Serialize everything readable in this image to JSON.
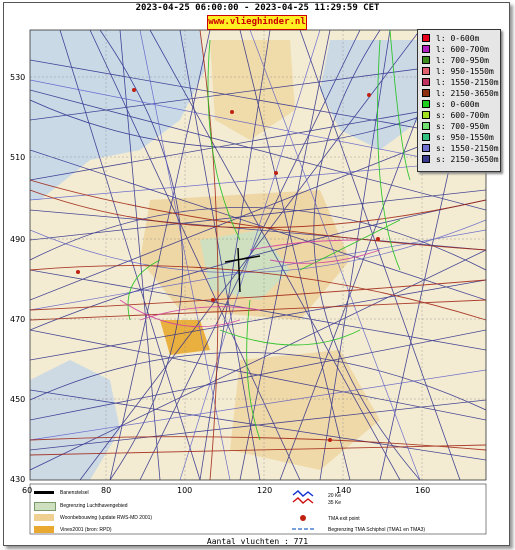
{
  "title": "2023-04-25 06:00:00 - 2023-04-25 11:29:59 CET",
  "brand": "www.vlieghinder.nl",
  "axes": {
    "y_ticks": [
      "530",
      "510",
      "490",
      "470",
      "450",
      "430"
    ],
    "x_ticks": [
      "60",
      "80",
      "100",
      "120",
      "140",
      "160"
    ]
  },
  "legend": [
    {
      "label": "l: 0-600m",
      "color": "#e8001e"
    },
    {
      "label": "l: 600-700m",
      "color": "#b020c0"
    },
    {
      "label": "l: 700-950m",
      "color": "#3c8c1e"
    },
    {
      "label": "l: 950-1550m",
      "color": "#e06070"
    },
    {
      "label": "l: 1550-2150m",
      "color": "#c03060"
    },
    {
      "label": "l: 2150-3650m",
      "color": "#8c3010"
    },
    {
      "label": "s: 0-600m",
      "color": "#20d020"
    },
    {
      "label": "s: 600-700m",
      "color": "#a0e020"
    },
    {
      "label": "s: 700-950m",
      "color": "#70e070"
    },
    {
      "label": "s: 950-1550m",
      "color": "#30c080"
    },
    {
      "label": "s: 1550-2150m",
      "color": "#7070d0"
    },
    {
      "label": "s: 2150-3650m",
      "color": "#3a3a90"
    }
  ],
  "bottom_legend": {
    "runways": "Banenstelsel",
    "airport_boundary": "Begrenzing Luchthavengebied",
    "housing": "Woonbebouwing (update RWS-MD 2001)",
    "vinex": "Vinex2001 (bron: RPD)",
    "noise_20": "20 Ke",
    "noise_35": "35 Ke",
    "tma_exit": "TMA exit point",
    "tma_boundary": "Begrenzing TMA Schiphol  (TMA1 en TMA3)"
  },
  "flight_count": "Aantal vluchten : 771"
}
